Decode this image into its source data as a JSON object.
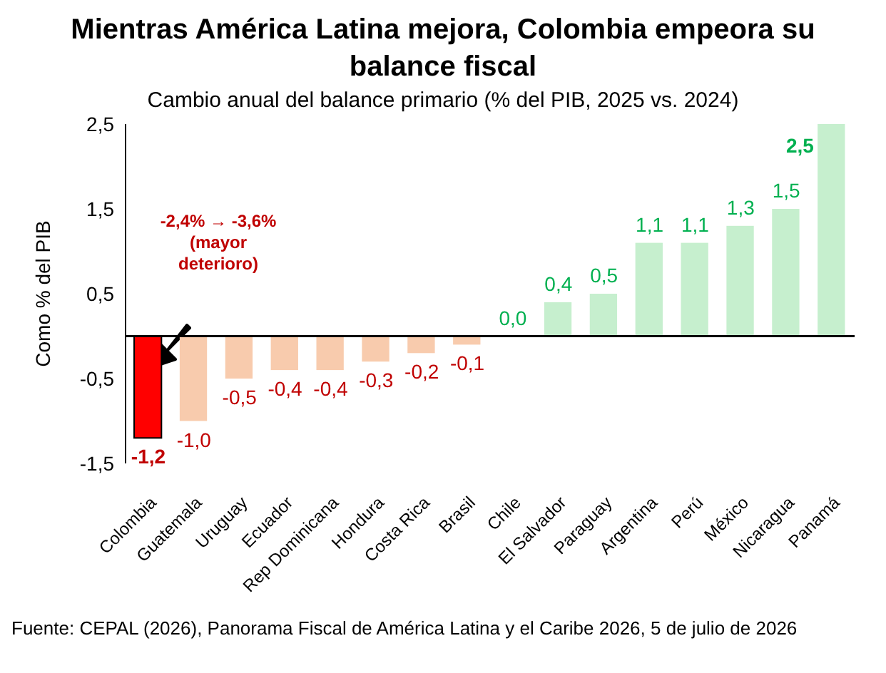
{
  "chart_data": {
    "type": "bar",
    "title": "Mientras América Latina mejora, Colombia empeora su balance fiscal",
    "subtitle": "Cambio anual del balance primario (% del PIB, 2025 vs. 2024)",
    "ylabel": "Como % del PIB",
    "categories": [
      "Colombia",
      "Guatemala",
      "Uruguay",
      "Ecuador",
      "Rep Dominicana",
      "Hondura",
      "Costa Rica",
      "Brasil",
      "Chile",
      "El Salvador",
      "Paraguay",
      "Argentina",
      "Perú",
      "México",
      "Nicaragua",
      "Panamá"
    ],
    "values": [
      -1.2,
      -1.0,
      -0.5,
      -0.4,
      -0.4,
      -0.3,
      -0.2,
      -0.1,
      0.0,
      0.4,
      0.5,
      1.1,
      1.1,
      1.3,
      1.5,
      2.5
    ],
    "colors": [
      "#ff0000",
      "#f8cbad",
      "#f8cbad",
      "#f8cbad",
      "#f8cbad",
      "#f8cbad",
      "#f8cbad",
      "#f8cbad",
      "#c6efce",
      "#c6efce",
      "#c6efce",
      "#c6efce",
      "#c6efce",
      "#c6efce",
      "#c6efce",
      "#c6efce"
    ],
    "value_labels": [
      "-1,2",
      "-1,0",
      "-0,5",
      "-0,4",
      "-0,4",
      "-0,3",
      "-0,2",
      "-0,1",
      "0,0",
      "0,4",
      "0,5",
      "1,1",
      "1,1",
      "1,3",
      "1,5",
      "2,5"
    ],
    "ylim": [
      -1.5,
      2.5
    ],
    "yticks": [
      {
        "value": -1.5,
        "label": "-1,5"
      },
      {
        "value": -0.5,
        "label": "-0,5"
      },
      {
        "value": 0.5,
        "label": "0,5"
      },
      {
        "value": 1.5,
        "label": "1,5"
      },
      {
        "value": 2.5,
        "label": "2,5"
      }
    ],
    "ref_lines": [
      {
        "axis": "y",
        "value": 0,
        "color": "#000000"
      }
    ],
    "grid": false,
    "legend": false,
    "annotations": [
      "-2,4% → -3,6%\n(mayor\ndeterioro)",
      "Fuente: CEPAL (2026), Panorama Fiscal de América Latina y el Caribe 2026, 5 de julio de 2026"
    ]
  }
}
